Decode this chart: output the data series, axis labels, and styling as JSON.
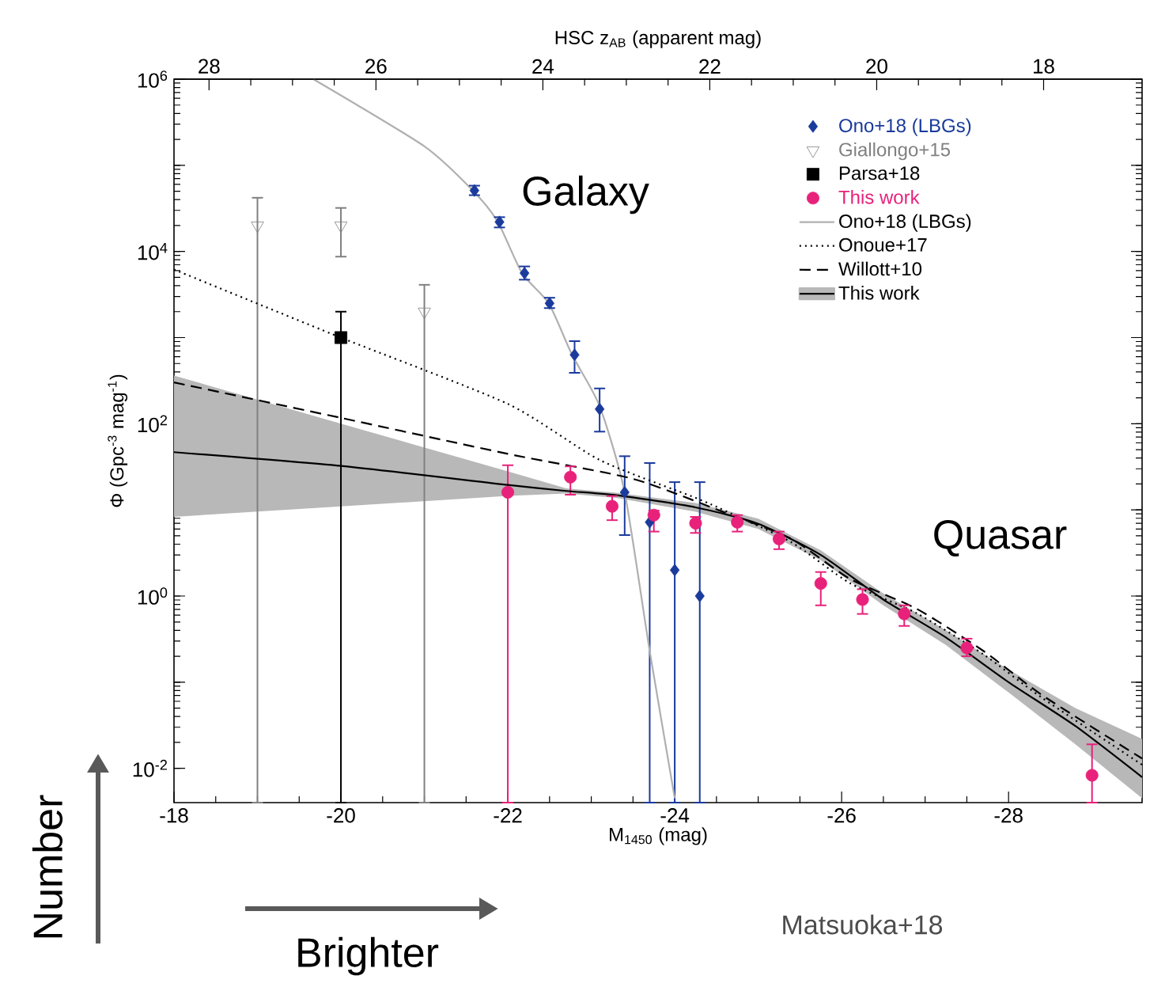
{
  "chart_data": {
    "type": "scatter",
    "xlabel": "M$_{1450}$ (mag)",
    "x2label": "HSC z$_{AB}$ (apparent mag)",
    "ylabel": "Φ (Gpc$^{-3}$ mag$^{-1}$)",
    "xlim": [
      -18,
      -29.6
    ],
    "xticks": [
      -18,
      -20,
      -22,
      -24,
      -26,
      -28
    ],
    "x2lim": [
      28.42,
      16.82
    ],
    "x2ticks": [
      28,
      26,
      24,
      22,
      20,
      18
    ],
    "ylim": [
      0.004,
      1000000
    ],
    "log": "y",
    "yticks": [
      {
        "value": 0.01,
        "label": "10$^{-2}$"
      },
      {
        "value": 0.1,
        "label": null
      },
      {
        "value": 1,
        "label": "10$^{0}$"
      },
      {
        "value": 10,
        "label": null
      },
      {
        "value": 100,
        "label": "10$^{2}$"
      },
      {
        "value": 1000,
        "label": null
      },
      {
        "value": 10000,
        "label": "10$^{4}$"
      },
      {
        "value": 100000,
        "label": null
      },
      {
        "value": 1000000,
        "label": "10$^{6}$"
      }
    ],
    "legend": "top right",
    "series": [
      {
        "name": "Ono+18 (LBGs)",
        "type": "scatter",
        "marker": "diamond",
        "color": "#1a3a9c",
        "x": [
          -21.6,
          -21.9,
          -22.2,
          -22.5,
          -22.8,
          -23.1,
          -23.4,
          -23.7,
          -24.0,
          -24.3
        ],
        "values": [
          51000,
          22000,
          5600,
          2500,
          630,
          148,
          16,
          7.2,
          2.0,
          1.0
        ],
        "errors": [
          [
            45000,
            58000
          ],
          [
            19000,
            25000
          ],
          [
            4700,
            6700
          ],
          [
            2200,
            2900
          ],
          [
            390,
            910
          ],
          [
            81,
            257
          ],
          [
            5.1,
            42
          ],
          [
            0.004,
            35
          ],
          [
            0.004,
            21
          ],
          [
            0.004,
            21
          ]
        ]
      },
      {
        "name": "Giallongo+15",
        "type": "scatter",
        "marker": "triangle",
        "color": "#808080",
        "x": [
          -19,
          -20,
          -21
        ],
        "values": [
          20000,
          20000,
          2000
        ],
        "errors": [
          [
            0.004,
            42000
          ],
          [
            8700,
            32000
          ],
          [
            0.004,
            4100
          ]
        ]
      },
      {
        "name": "Parsa+18",
        "type": "scatter",
        "marker": "square",
        "color": "#000000",
        "x": [
          -20
        ],
        "values": [
          1000
        ],
        "errors": [
          [
            0.004,
            2000
          ]
        ]
      },
      {
        "name": "This work",
        "type": "scatter",
        "marker": "circle",
        "color": "#e8217a",
        "x": [
          -22.0,
          -22.75,
          -23.25,
          -23.75,
          -24.25,
          -24.75,
          -25.25,
          -25.75,
          -26.25,
          -26.75,
          -27.5,
          -29.0
        ],
        "values": [
          16,
          24,
          11,
          8.7,
          7.0,
          7.2,
          4.6,
          1.4,
          0.91,
          0.62,
          0.25,
          0.0083
        ],
        "errors": [
          [
            0.004,
            33
          ],
          [
            15,
            32
          ],
          [
            7.6,
            14.5
          ],
          [
            5.6,
            9.8
          ],
          [
            5.4,
            8.3
          ],
          [
            5.6,
            8.7
          ],
          [
            3.5,
            5.6
          ],
          [
            0.78,
            1.9
          ],
          [
            0.62,
            1.2
          ],
          [
            0.45,
            0.78
          ],
          [
            0.2,
            0.32
          ],
          [
            0.004,
            0.019
          ]
        ]
      },
      {
        "name": "Ono+18 (LBGs)",
        "type": "line",
        "line_style": "solid",
        "color": "#b0b0b0",
        "x": [
          -19.67,
          -21.0,
          -21.58,
          -21.88,
          -22.17,
          -22.49,
          -22.77,
          -23.1,
          -23.4,
          -23.7,
          -24.0
        ],
        "values": [
          1000000,
          166000,
          51000,
          22000,
          5600,
          2500,
          630,
          160,
          16,
          0.23,
          0.0045
        ]
      },
      {
        "name": "Onoue+17",
        "type": "line",
        "line_style": "dotted",
        "color": "#000000",
        "x": [
          -18,
          -20,
          -22,
          -23.1,
          -24.25,
          -24.6,
          -25.4,
          -26.1,
          -26.9,
          -27.7,
          -28.4,
          -29.6
        ],
        "values": [
          6170,
          1000,
          170,
          38,
          13.8,
          9.8,
          4.2,
          1.41,
          0.63,
          0.21,
          0.066,
          0.011
        ]
      },
      {
        "name": "Willott+10",
        "type": "line",
        "line_style": "dashed",
        "color": "#000000",
        "x": [
          -18,
          -20,
          -22,
          -23.5,
          -24.6,
          -25.4,
          -26.1,
          -26.9,
          -27.7,
          -28.4,
          -29.6
        ],
        "values": [
          302,
          117,
          44.7,
          22.9,
          9.3,
          4.6,
          1.58,
          0.71,
          0.23,
          0.071,
          0.013
        ]
      },
      {
        "name": "This work",
        "type": "line",
        "line_style": "solid",
        "color": "#000000",
        "x": [
          -18,
          -20,
          -22,
          -22.7,
          -23.3,
          -24.25,
          -25,
          -25.75,
          -26.5,
          -27.25,
          -28,
          -28.8,
          -29.6
        ],
        "values": [
          46.8,
          32.4,
          19.5,
          16.6,
          14.8,
          10.7,
          6.9,
          3.0,
          0.91,
          0.33,
          0.1,
          0.031,
          0.0079
        ],
        "lower": [
          8.3,
          11.0,
          14.5,
          15.5,
          13.8,
          9.5,
          6.0,
          2.6,
          0.78,
          0.27,
          0.076,
          0.019,
          0.0045
        ],
        "upper": [
          363,
          100,
          28,
          17.8,
          15.8,
          12.0,
          7.9,
          3.4,
          1.07,
          0.4,
          0.14,
          0.05,
          0.022
        ]
      }
    ],
    "annotations": [
      "Galaxy",
      "Quasar",
      "Number",
      "Brighter",
      "Matsuoka+18"
    ]
  }
}
